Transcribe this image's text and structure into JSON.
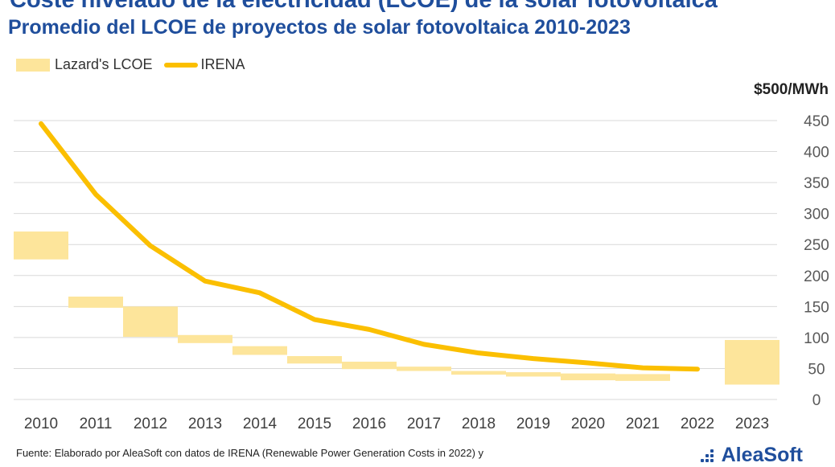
{
  "header": {
    "title": "Coste nivelado de la electricidad (LCOE) de la solar fotovoltaica",
    "subtitle": "Promedio del LCOE de proyectos de solar fotovoltaica 2010-2023"
  },
  "legend": {
    "items": [
      {
        "label": "Lazard's LCOE",
        "swatch": "box",
        "color": "#fde59b"
      },
      {
        "label": "IRENA",
        "swatch": "line",
        "color": "#fbbf00"
      }
    ]
  },
  "axis_unit": "$500/MWh",
  "chart_data": {
    "type": "line",
    "title": "Coste nivelado de la electricidad (LCOE) de la solar fotovoltaica",
    "subtitle": "Promedio del LCOE de proyectos de solar fotovoltaica 2010-2023",
    "categories": [
      "2010",
      "2011",
      "2012",
      "2013",
      "2014",
      "2015",
      "2016",
      "2017",
      "2018",
      "2019",
      "2020",
      "2021",
      "2022",
      "2023"
    ],
    "ylim": [
      0,
      500
    ],
    "yticks": [
      0,
      50,
      100,
      150,
      200,
      250,
      300,
      350,
      400,
      450
    ],
    "y_axis_position": "right",
    "ylabel": "$500/MWh",
    "grid": true,
    "legend_position": "top-left",
    "series": [
      {
        "name": "Lazard's LCOE",
        "type": "floating-bar",
        "color": "#fde59b",
        "ranges": [
          [
            226,
            271
          ],
          [
            148,
            166
          ],
          [
            101,
            150
          ],
          [
            91,
            104
          ],
          [
            72,
            86
          ],
          [
            58,
            70
          ],
          [
            49,
            61
          ],
          [
            46,
            53
          ],
          [
            40,
            46
          ],
          [
            37,
            44
          ],
          [
            31,
            42
          ],
          [
            30,
            41
          ],
          null,
          [
            24,
            96
          ]
        ]
      },
      {
        "name": "IRENA",
        "type": "line",
        "color": "#fbbf00",
        "values": [
          445,
          331,
          248,
          191,
          172,
          129,
          113,
          89,
          75,
          66,
          59,
          51,
          49,
          null
        ]
      }
    ]
  },
  "footer": {
    "source": "Fuente: Elaborado por AleaSoft con datos de IRENA (Renewable Power Generation Costs in 2022) y",
    "logo_text": "AleaSoft"
  }
}
